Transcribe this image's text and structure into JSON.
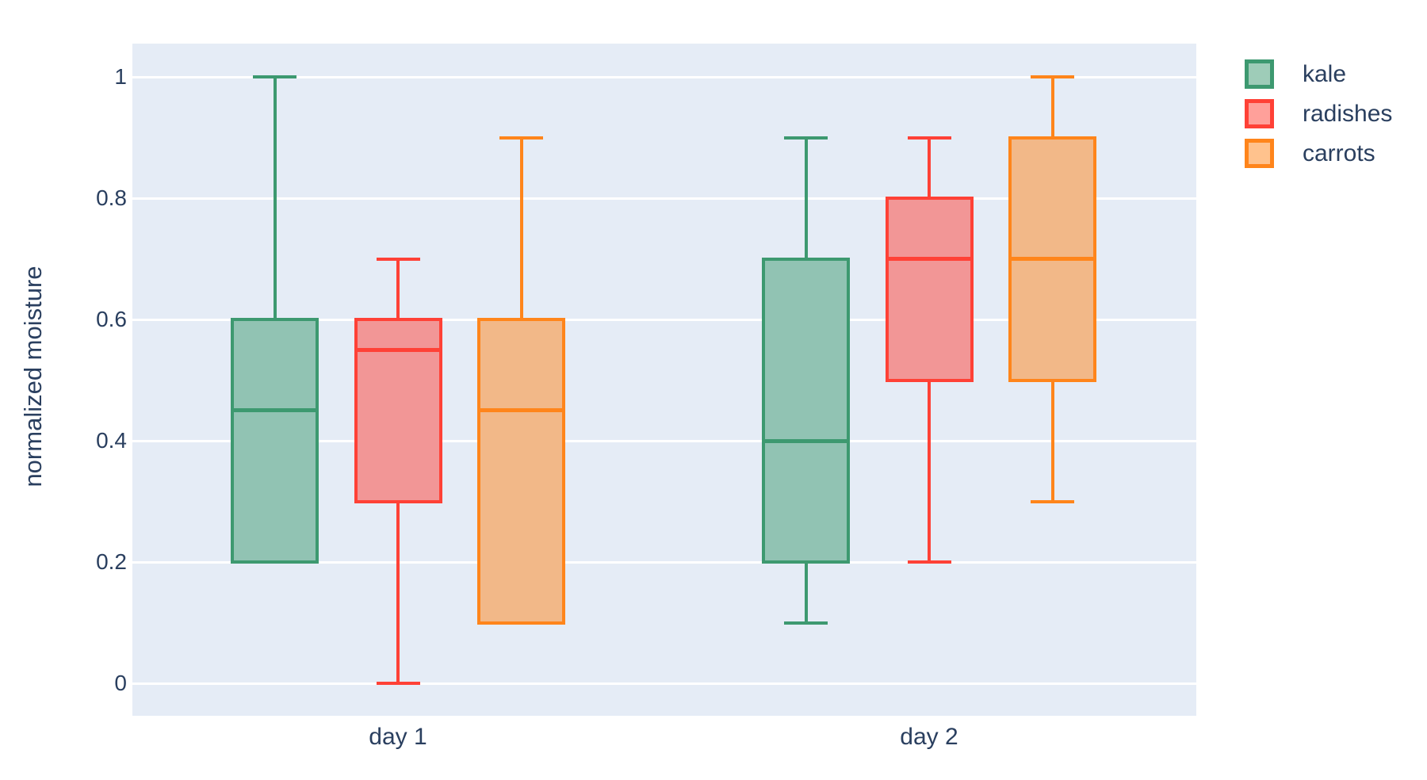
{
  "figure": {
    "background_color": "#ffffff",
    "plot_background_color": "#E5ECF6",
    "grid_color": "#ffffff",
    "text_color": "#2a3f5f"
  },
  "chart_data": {
    "type": "box",
    "title": "",
    "xlabel": "",
    "ylabel": "normalized moisture",
    "categories": [
      "day 1",
      "day 2"
    ],
    "y_ticks": [
      0,
      0.2,
      0.4,
      0.6,
      0.8,
      1
    ],
    "y_tick_labels": [
      "0",
      "0.2",
      "0.4",
      "0.6",
      "0.8",
      "1"
    ],
    "ylim": [
      -0.054,
      1.055
    ],
    "grid": "on",
    "legend_position": "top-right-outside",
    "orientation": "vertical",
    "series": [
      {
        "name": "kale",
        "line_color": "#3D9970",
        "fill_color": "#91C3B3",
        "legend_fill_color": "#9ECCB8",
        "boxes": [
          {
            "category": "day 1",
            "min": 0.2,
            "q1": 0.2,
            "median": 0.45,
            "q3": 0.6,
            "max": 1.0
          },
          {
            "category": "day 2",
            "min": 0.1,
            "q1": 0.2,
            "median": 0.4,
            "q3": 0.7,
            "max": 0.9
          }
        ]
      },
      {
        "name": "radishes",
        "line_color": "#FF4136",
        "fill_color": "#F29696",
        "legend_fill_color": "#FFA09A",
        "boxes": [
          {
            "category": "day 1",
            "min": 0.0,
            "q1": 0.3,
            "median": 0.55,
            "q3": 0.6,
            "max": 0.7
          },
          {
            "category": "day 2",
            "min": 0.2,
            "q1": 0.5,
            "median": 0.7,
            "q3": 0.8,
            "max": 0.9
          }
        ]
      },
      {
        "name": "carrots",
        "line_color": "#FF851B",
        "fill_color": "#F2B888",
        "legend_fill_color": "#FFC28D",
        "boxes": [
          {
            "category": "day 1",
            "min": 0.1,
            "q1": 0.1,
            "median": 0.45,
            "q3": 0.6,
            "max": 0.9
          },
          {
            "category": "day 2",
            "min": 0.3,
            "q1": 0.5,
            "median": 0.7,
            "q3": 0.9,
            "max": 1.0
          }
        ]
      }
    ]
  }
}
